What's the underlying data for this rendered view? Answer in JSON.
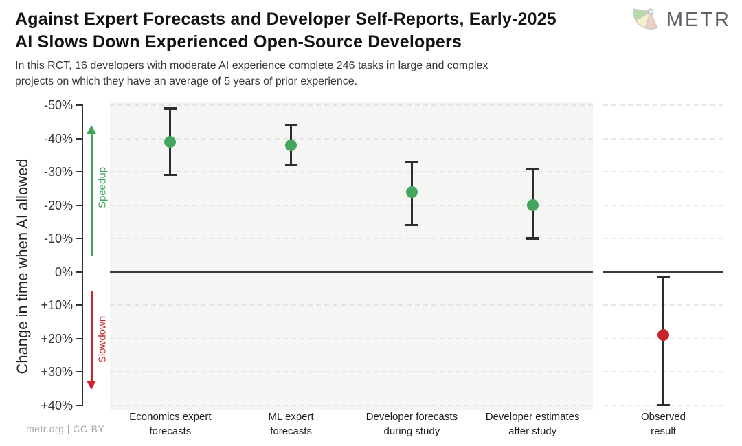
{
  "header": {
    "logo": {
      "text": "METR",
      "icon": "metr-fan-icon"
    }
  },
  "footer": {
    "credit": "metr.org | CC-BY"
  },
  "chart_data": {
    "type": "scatter",
    "title_lines": [
      "Against Expert Forecasts and Developer Self-Reports, Early-2025",
      "AI Slows Down Experienced Open-Source Developers"
    ],
    "subtitle_lines": [
      "In this RCT, 16 developers with moderate AI experience complete 246 tasks in large and complex",
      "projects on which they have an average of 5 years of prior experience."
    ],
    "ylabel": "Change in time when AI allowed",
    "xlabel": "",
    "units": "percent change in completion time, negative = speedup",
    "ylim": [
      -51,
      41.5
    ],
    "yticks": [
      {
        "value": -50,
        "label": "-50%"
      },
      {
        "value": -40,
        "label": "-40%"
      },
      {
        "value": -30,
        "label": "-30%"
      },
      {
        "value": -20,
        "label": "-20%"
      },
      {
        "value": -10,
        "label": "-10%"
      },
      {
        "value": 0,
        "label": "0%"
      },
      {
        "value": 10,
        "label": "+10%"
      },
      {
        "value": 20,
        "label": "+20%"
      },
      {
        "value": 30,
        "label": "+30%"
      },
      {
        "value": 40,
        "label": "+40%"
      }
    ],
    "zero_line_value": 0,
    "grid": "horizontal dashed",
    "legend": "none",
    "direction_annotations": [
      {
        "label": "Speedup",
        "direction": "up",
        "color": "#3fa55c"
      },
      {
        "label": "Slowdown",
        "direction": "down",
        "color": "#cc2428"
      }
    ],
    "series": [
      {
        "category_lines": [
          "Economics expert",
          "forecasts"
        ],
        "mean": -39,
        "ci_low": -49,
        "ci_high": -29,
        "panel": "main",
        "color": "#44a55c"
      },
      {
        "category_lines": [
          "ML expert",
          "forecasts"
        ],
        "mean": -38,
        "ci_low": -44,
        "ci_high": -32,
        "panel": "main",
        "color": "#44a55c"
      },
      {
        "category_lines": [
          "Developer forecasts",
          "during study"
        ],
        "mean": -24,
        "ci_low": -33,
        "ci_high": -14,
        "panel": "main",
        "color": "#44a55c"
      },
      {
        "category_lines": [
          "Developer estimates",
          "after study"
        ],
        "mean": -20,
        "ci_low": -31,
        "ci_high": -10,
        "panel": "main",
        "color": "#44a55c"
      },
      {
        "category_lines": [
          "Observed",
          "result"
        ],
        "mean": 19,
        "ci_low": 1.5,
        "ci_high": 40,
        "panel": "right",
        "color": "#c8232a"
      }
    ]
  },
  "colors": {
    "error_bar": "#2d2d2d",
    "zero_line": "#3c3c3c",
    "axis": "#333333",
    "panel_bg": "#f5f5f3",
    "gridline_main": "#e4e4e2",
    "gridline_right": "#e9e9e9",
    "title_text": "#121212",
    "subtitle_text": "#373737",
    "footer_text": "#a5a5a5",
    "logo_text": "#5d6166"
  }
}
